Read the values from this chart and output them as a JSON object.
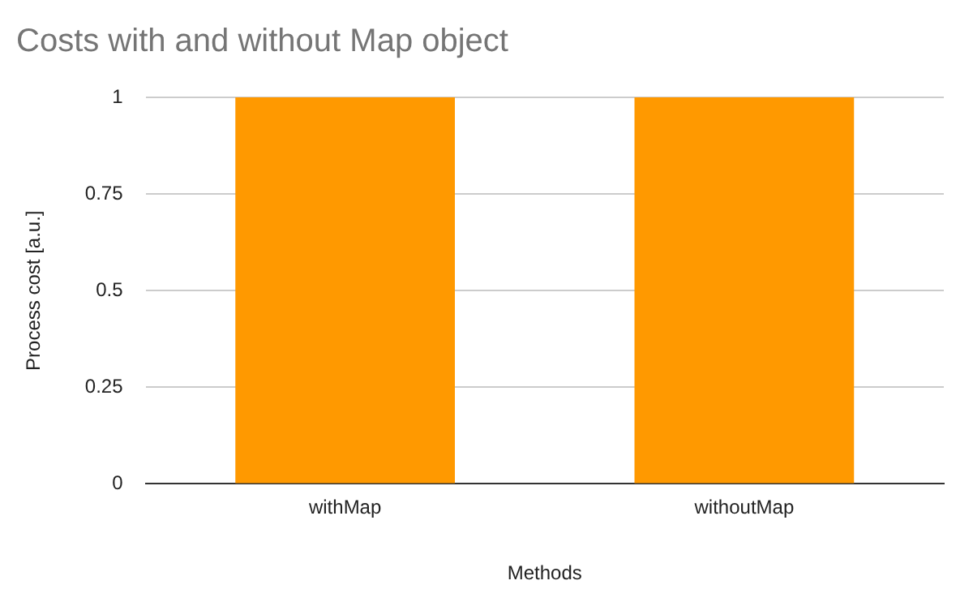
{
  "chart_data": {
    "type": "bar",
    "title": "Costs with and without Map object",
    "xlabel": "Methods",
    "ylabel": "Process cost [a.u.]",
    "categories": [
      "withMap",
      "withoutMap"
    ],
    "series": [
      {
        "color": "#ff9900",
        "values": [
          1,
          1
        ]
      }
    ],
    "ylim": [
      0,
      1
    ],
    "yticks": [
      0,
      0.25,
      0.5,
      0.75,
      1
    ],
    "grid": "y",
    "legend": false
  }
}
